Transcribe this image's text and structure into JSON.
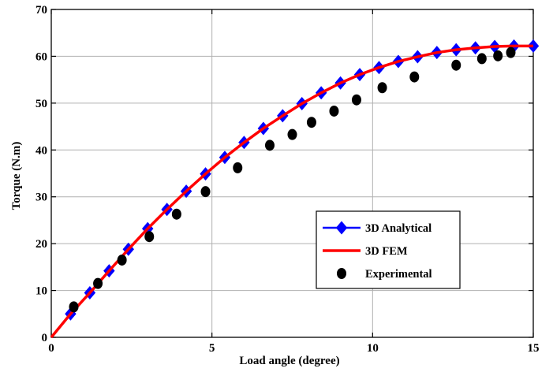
{
  "chart_data": {
    "type": "line",
    "title": "",
    "xlabel": "Load angle (degree)",
    "ylabel": "Torque (N.m)",
    "xlim": [
      0,
      15
    ],
    "ylim": [
      0,
      70
    ],
    "x_ticks": [
      "0",
      "5",
      "10",
      "15"
    ],
    "y_ticks": [
      "0",
      "10",
      "20",
      "30",
      "40",
      "50",
      "60",
      "70"
    ],
    "grid": true,
    "legend_position": "lower-right",
    "series": [
      {
        "name": "3D Analytical",
        "style": "line-diamond",
        "color": "#0000ff",
        "x": [
          0,
          0.6,
          1.2,
          1.8,
          2.4,
          3.0,
          3.6,
          4.2,
          4.8,
          5.4,
          6.0,
          6.6,
          7.2,
          7.8,
          8.4,
          9.0,
          9.6,
          10.2,
          10.8,
          11.4,
          12.0,
          12.6,
          13.2,
          13.8,
          14.4,
          15.0
        ],
        "y": [
          0,
          5.0,
          9.5,
          14.2,
          18.8,
          23.2,
          27.3,
          31.2,
          34.9,
          38.4,
          41.6,
          44.6,
          47.3,
          49.9,
          52.2,
          54.3,
          56.1,
          57.6,
          58.9,
          59.9,
          60.8,
          61.4,
          61.8,
          62.1,
          62.2,
          62.2
        ]
      },
      {
        "name": "3D FEM",
        "style": "line",
        "color": "#ff0000",
        "x": [
          0,
          0.6,
          1.2,
          1.8,
          2.4,
          3.0,
          3.6,
          4.2,
          4.8,
          5.4,
          6.0,
          6.6,
          7.2,
          7.8,
          8.4,
          9.0,
          9.6,
          10.2,
          10.8,
          11.4,
          12.0,
          12.6,
          13.2,
          13.8,
          14.4,
          15.0
        ],
        "y": [
          0,
          5.0,
          9.5,
          14.2,
          18.8,
          23.2,
          27.3,
          31.2,
          34.9,
          38.4,
          41.6,
          44.6,
          47.3,
          49.9,
          52.2,
          54.3,
          56.1,
          57.6,
          58.9,
          59.9,
          60.8,
          61.4,
          61.8,
          62.1,
          62.2,
          62.2
        ]
      },
      {
        "name": "Experimental",
        "style": "marker-circle",
        "color": "#000000",
        "x": [
          0.7,
          1.45,
          2.2,
          3.05,
          3.9,
          4.8,
          5.8,
          6.8,
          7.5,
          8.1,
          8.8,
          9.5,
          10.3,
          11.3,
          12.6,
          13.4,
          13.9,
          14.3
        ],
        "y": [
          6.5,
          11.5,
          16.5,
          21.5,
          26.3,
          31.1,
          36.2,
          41.0,
          43.3,
          45.9,
          48.3,
          50.7,
          53.3,
          55.6,
          58.1,
          59.5,
          60.1,
          60.8
        ]
      }
    ]
  }
}
